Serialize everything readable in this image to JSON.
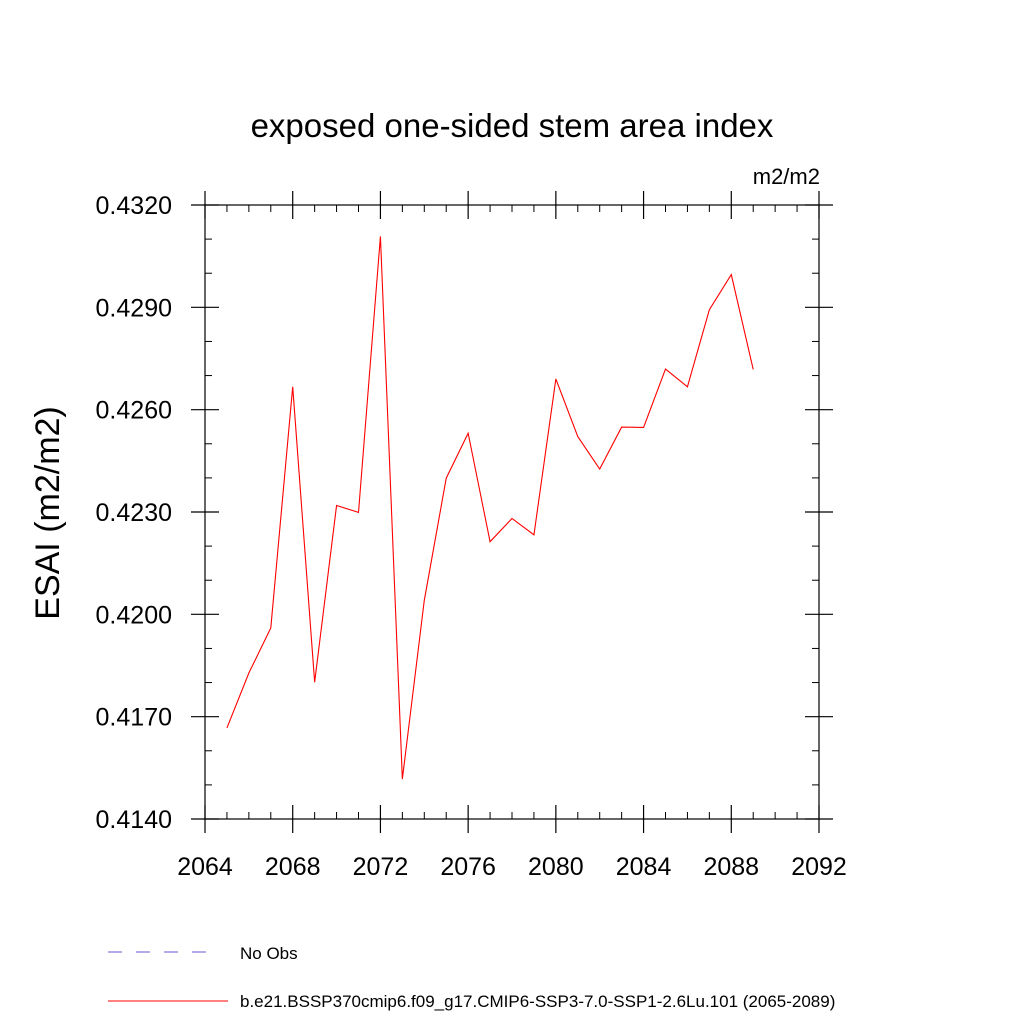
{
  "chart_data": {
    "type": "line",
    "title": "exposed one-sided stem area index",
    "units_label": "m2/m2",
    "xlabel": "",
    "ylabel": "ESAI  (m2/m2)",
    "xlim": [
      2064,
      2092
    ],
    "ylim": [
      0.414,
      0.432
    ],
    "x_ticks": [
      2064,
      2068,
      2072,
      2076,
      2080,
      2084,
      2088,
      2092
    ],
    "x_tick_labels": [
      "2064",
      "2068",
      "2072",
      "2076",
      "2080",
      "2084",
      "2088",
      "2092"
    ],
    "x_minor_step": 1,
    "y_ticks": [
      0.414,
      0.417,
      0.42,
      0.423,
      0.426,
      0.429,
      0.432
    ],
    "y_tick_labels": [
      "0.4140",
      "0.4170",
      "0.4200",
      "0.4230",
      "0.4260",
      "0.4290",
      "0.4320"
    ],
    "y_minor_step": 0.001,
    "grid": false,
    "series": [
      {
        "name": "b.e21.BSSP370cmip6.f09_g17.CMIP6-SSP3-7.0-SSP1-2.6Lu.101 (2065-2089)",
        "color": "#ff0000",
        "x": [
          2065,
          2066,
          2067,
          2068,
          2069,
          2070,
          2071,
          2072,
          2073,
          2074,
          2075,
          2076,
          2077,
          2078,
          2079,
          2080,
          2081,
          2082,
          2083,
          2084,
          2085,
          2086,
          2087,
          2088,
          2089
        ],
        "values": [
          0.41667,
          0.41828,
          0.4196,
          0.42667,
          0.41801,
          0.42319,
          0.42299,
          0.43108,
          0.41517,
          0.42041,
          0.42399,
          0.42531,
          0.42213,
          0.42281,
          0.42233,
          0.4269,
          0.42521,
          0.42426,
          0.42549,
          0.42548,
          0.42719,
          0.42667,
          0.42893,
          0.42996,
          0.42718
        ]
      }
    ],
    "legend": {
      "placement": "bottom",
      "entries": [
        {
          "label": "No Obs",
          "color": "#6a5acd",
          "style": "dashed"
        },
        {
          "label": "b.e21.BSSP370cmip6.f09_g17.CMIP6-SSP3-7.0-SSP1-2.6Lu.101 (2065-2089)",
          "color": "#ff0000",
          "style": "solid"
        }
      ]
    }
  }
}
